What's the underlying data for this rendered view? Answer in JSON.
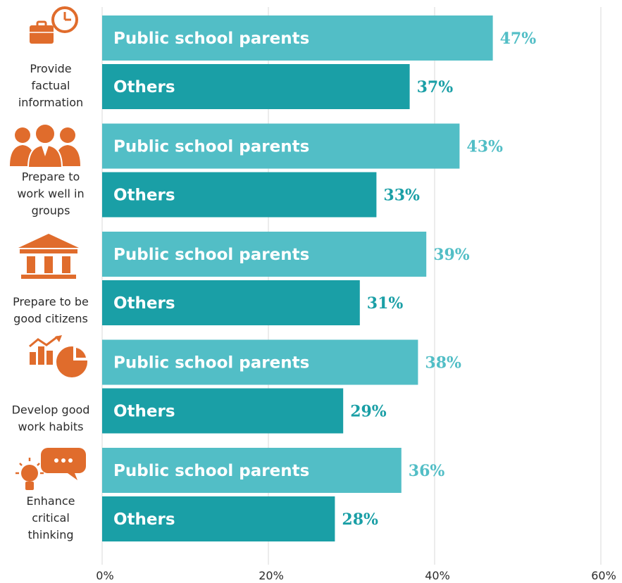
{
  "chart_data": {
    "type": "bar",
    "orientation": "horizontal",
    "categories": [
      "Provide factual information",
      "Prepare to work  well in groups",
      "Prepare to be good citizens",
      "Develop good work habits",
      "Enhance critical thinking"
    ],
    "category_lines": [
      [
        "Provide",
        "factual",
        "information"
      ],
      [
        "Prepare to",
        "work  well in",
        "groups"
      ],
      [
        "Prepare to be",
        "good citizens"
      ],
      [
        "Develop good",
        "work habits"
      ],
      [
        "Enhance",
        "critical",
        "thinking"
      ]
    ],
    "series": [
      {
        "name": "Public school parents",
        "values": [
          47,
          43,
          39,
          38,
          36
        ],
        "color": "#52bec6"
      },
      {
        "name": "Others",
        "values": [
          37,
          33,
          31,
          29,
          28
        ],
        "color": "#1a9fa6"
      }
    ],
    "value_suffix": "%",
    "xlim": [
      0,
      60
    ],
    "x_ticks": [
      "0%",
      "20%",
      "40%",
      "60%"
    ],
    "grid": true,
    "legend": "none",
    "icon_color": "#e06c2c",
    "icons": [
      "briefcase-clock-icon",
      "people-group-icon",
      "government-building-icon",
      "chart-growth-icon",
      "lightbulb-speech-icon"
    ]
  }
}
